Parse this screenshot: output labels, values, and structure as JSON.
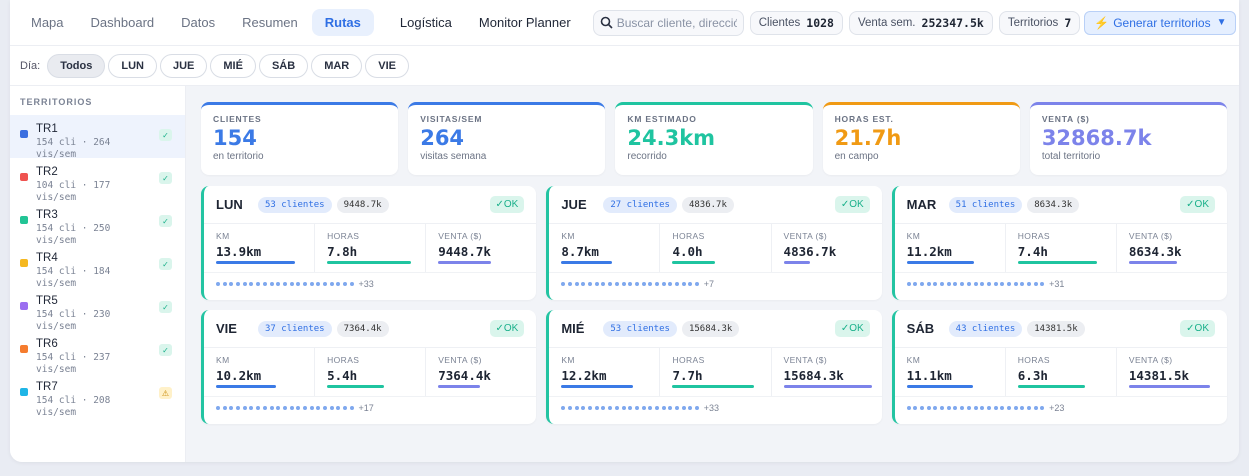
{
  "nav": {
    "tabs": [
      "Mapa",
      "Dashboard",
      "Datos",
      "Resumen",
      "Rutas"
    ],
    "active_tab": "Rutas",
    "extra": [
      "Logística",
      "Monitor Planner"
    ]
  },
  "search": {
    "placeholder": "Buscar cliente, dirección..."
  },
  "header_stats": {
    "clientes_label": "Clientes",
    "clientes_value": "1028",
    "venta_label": "Venta sem.",
    "venta_value": "252347.5k",
    "territorios_label": "Territorios",
    "territorios_value": "7"
  },
  "generate_button": {
    "icon": "⚡",
    "label": "Generar territorios",
    "caret": "▼"
  },
  "theme_toggle": {
    "icon": "moon-icon",
    "glyph": "🌙"
  },
  "day_filter": {
    "label": "Día:",
    "options": [
      "Todos",
      "LUN",
      "JUE",
      "MIÉ",
      "SÁB",
      "MAR",
      "VIE"
    ],
    "selected": "Todos"
  },
  "sidebar": {
    "title": "TERRITORIOS",
    "items": [
      {
        "name": "TR1",
        "sub": "154 cli · 264 vis/sem",
        "color": "#3b6fe0",
        "status": "✓",
        "warn": false
      },
      {
        "name": "TR2",
        "sub": "104 cli · 177 vis/sem",
        "color": "#ef5350",
        "status": "✓",
        "warn": false
      },
      {
        "name": "TR3",
        "sub": "154 cli · 250 vis/sem",
        "color": "#22c495",
        "status": "✓",
        "warn": false
      },
      {
        "name": "TR4",
        "sub": "154 cli · 184 vis/sem",
        "color": "#f5b820",
        "status": "✓",
        "warn": false
      },
      {
        "name": "TR5",
        "sub": "154 cli · 230 vis/sem",
        "color": "#9b6ef0",
        "status": "✓",
        "warn": false
      },
      {
        "name": "TR6",
        "sub": "154 cli · 237 vis/sem",
        "color": "#f57c2e",
        "status": "✓",
        "warn": false
      },
      {
        "name": "TR7",
        "sub": "154 cli · 208 vis/sem",
        "color": "#1fb5e6",
        "status": "⚠",
        "warn": true
      }
    ]
  },
  "kpis": [
    {
      "label": "CLIENTES",
      "value": "154",
      "sub": "en territorio",
      "color": "#3b7ae6"
    },
    {
      "label": "VISITAS/SEM",
      "value": "264",
      "sub": "visitas semana",
      "color": "#3b7ae6"
    },
    {
      "label": "KM ESTIMADO",
      "value": "24.3km",
      "sub": "recorrido",
      "color": "#1fc4a0"
    },
    {
      "label": "HORAS EST.",
      "value": "21.7h",
      "sub": "en campo",
      "color": "#f09a14"
    },
    {
      "label": "VENTA ($)",
      "value": "32868.7k",
      "sub": "total territorio",
      "color": "#7c83ea"
    }
  ],
  "metric_labels": {
    "km": "KM",
    "horas": "HORAS",
    "venta": "VENTA ($)"
  },
  "ok_label": "✓OK",
  "days": [
    {
      "name": "LUN",
      "clientes": "53 clientes",
      "amount": "9448.7k",
      "km": "13.9km",
      "horas": "7.8h",
      "venta": "9448.7k",
      "km_frac": 0.9,
      "horas_frac": 0.95,
      "venta_frac": 0.6,
      "dots": 21,
      "more": "+33"
    },
    {
      "name": "JUE",
      "clientes": "27 clientes",
      "amount": "4836.7k",
      "km": "8.7km",
      "horas": "4.0h",
      "venta": "4836.7k",
      "km_frac": 0.58,
      "horas_frac": 0.48,
      "venta_frac": 0.3,
      "dots": 21,
      "more": "+7"
    },
    {
      "name": "MAR",
      "clientes": "51 clientes",
      "amount": "8634.3k",
      "km": "11.2km",
      "horas": "7.4h",
      "venta": "8634.3k",
      "km_frac": 0.76,
      "horas_frac": 0.9,
      "venta_frac": 0.55,
      "dots": 21,
      "more": "+31"
    },
    {
      "name": "VIE",
      "clientes": "37 clientes",
      "amount": "7364.4k",
      "km": "10.2km",
      "horas": "5.4h",
      "venta": "7364.4k",
      "km_frac": 0.68,
      "horas_frac": 0.65,
      "venta_frac": 0.47,
      "dots": 21,
      "more": "+17"
    },
    {
      "name": "MIÉ",
      "clientes": "53 clientes",
      "amount": "15684.3k",
      "km": "12.2km",
      "horas": "7.7h",
      "venta": "15684.3k",
      "km_frac": 0.82,
      "horas_frac": 0.93,
      "venta_frac": 1.0,
      "dots": 21,
      "more": "+33"
    },
    {
      "name": "SÁB",
      "clientes": "43 clientes",
      "amount": "14381.5k",
      "km": "11.1km",
      "horas": "6.3h",
      "venta": "14381.5k",
      "km_frac": 0.75,
      "horas_frac": 0.76,
      "venta_frac": 0.92,
      "dots": 21,
      "more": "+23"
    }
  ]
}
